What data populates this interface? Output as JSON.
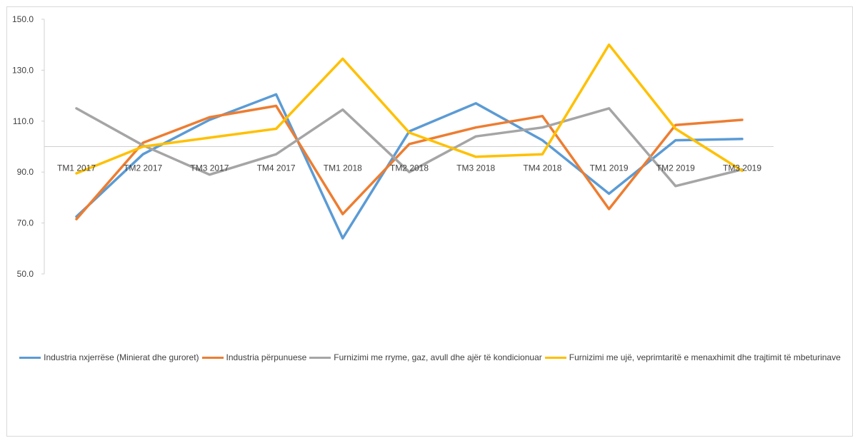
{
  "chart_data": {
    "type": "line",
    "title": "",
    "xlabel": "",
    "ylabel": "",
    "ylim": [
      50,
      150
    ],
    "yticks": [
      50,
      70,
      90,
      110,
      130,
      150
    ],
    "ytick_labels": [
      "50.0",
      "70.0",
      "90.0",
      "110.0",
      "130.0",
      "150.0"
    ],
    "reference_line": 100,
    "grid": false,
    "legend_position": "bottom",
    "categories": [
      "TM1 2017",
      "TM2 2017",
      "TM3 2017",
      "TM4 2017",
      "TM1 2018",
      "TM2 2018",
      "TM3 2018",
      "TM4 2018",
      "TM1 2019",
      "TM2 2019",
      "TM3 2019"
    ],
    "series": [
      {
        "name": "Industria nxjerrëse (Minierat dhe guroret)",
        "color": "#5b9bd5",
        "values": [
          72.5,
          97.0,
          110.5,
          120.5,
          64.0,
          106.0,
          117.0,
          102.5,
          81.5,
          102.5,
          103.0
        ]
      },
      {
        "name": "Industria përpunuese",
        "color": "#ed7d31",
        "values": [
          71.5,
          101.5,
          111.5,
          116.0,
          73.5,
          101.0,
          107.5,
          112.0,
          75.5,
          108.5,
          110.5
        ]
      },
      {
        "name": "Furnizimi me rryme, gaz, avull dhe ajër të kondicionuar",
        "color": "#a5a5a5",
        "values": [
          115.0,
          100.5,
          89.0,
          97.0,
          114.5,
          90.0,
          104.0,
          107.5,
          115.0,
          84.5,
          91.0
        ]
      },
      {
        "name": "Furnizimi me ujë, veprimtaritë e menaxhimit dhe trajtimit të mbeturinave",
        "color": "#ffc000",
        "values": [
          89.5,
          100.0,
          103.5,
          107.0,
          134.5,
          105.5,
          96.0,
          97.0,
          140.0,
          107.0,
          90.5
        ]
      }
    ]
  }
}
